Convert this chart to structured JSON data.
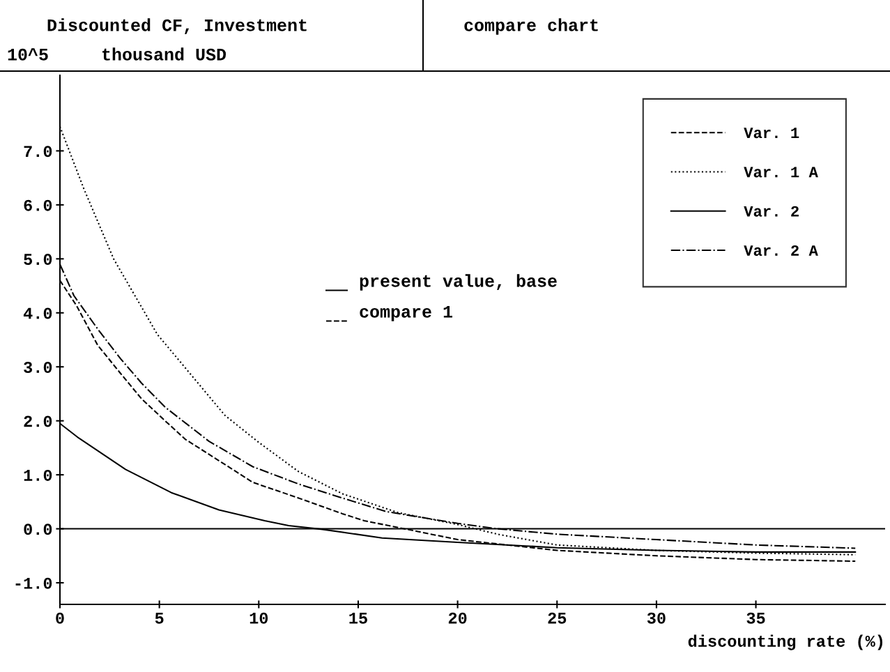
{
  "chart_data": {
    "type": "line",
    "title": "Discounted CF, Investment",
    "subtitle": "compare chart",
    "ylabel": "thousand USD",
    "xlabel": "discounting rate (%)",
    "annotations": [
      "10^5",
      "present value, base",
      "compare 1"
    ],
    "xlim": [
      0,
      41.5
    ],
    "ylim": [
      -1.4,
      8.4
    ],
    "xticks": [
      0,
      5,
      10,
      15,
      20,
      25,
      30,
      35
    ],
    "yticks": [
      {
        "value": -1,
        "label": "-1.0"
      },
      {
        "value": 0,
        "label": "0.0"
      },
      {
        "value": 1,
        "label": "1.0"
      },
      {
        "value": 2,
        "label": "2.0"
      },
      {
        "value": 3,
        "label": "3.0"
      },
      {
        "value": 4,
        "label": "4.0"
      },
      {
        "value": 5,
        "label": "5.0"
      },
      {
        "value": 6,
        "label": "6.0"
      },
      {
        "value": 7,
        "label": "7.0"
      }
    ],
    "ref_lines": [
      {
        "axis": "y",
        "value": 0,
        "label": null,
        "color": "#000000",
        "line_style": "solid"
      }
    ],
    "grid": false,
    "legend": "top right",
    "marker": "none",
    "series": [
      {
        "name": "Var. 1",
        "color": "#000000",
        "line_style": "dashed",
        "x": [
          0,
          0.84,
          1.9,
          3.0,
          4.1,
          5.2,
          6.3,
          8.6,
          9.7,
          12,
          14.2,
          15.3,
          18,
          20,
          25,
          30,
          35,
          40
        ],
        "values": [
          4.6,
          4.13,
          3.4,
          2.9,
          2.41,
          2.03,
          1.66,
          1.12,
          0.86,
          0.57,
          0.28,
          0.15,
          -0.05,
          -0.2,
          -0.4,
          -0.5,
          -0.57,
          -0.6
        ]
      },
      {
        "name": "Var. 1 A",
        "color": "#000000",
        "line_style": "dotted",
        "x": [
          0,
          1.2,
          2.7,
          4.9,
          8.3,
          10,
          12,
          14.2,
          17,
          20,
          22,
          25,
          30,
          35,
          40
        ],
        "values": [
          7.45,
          6.3,
          5.0,
          3.6,
          2.1,
          1.6,
          1.06,
          0.65,
          0.3,
          0.08,
          -0.1,
          -0.3,
          -0.4,
          -0.45,
          -0.48
        ]
      },
      {
        "name": "Var. 2",
        "color": "#000000",
        "line_style": "solid",
        "x": [
          0,
          0.95,
          3.3,
          5.6,
          8.0,
          10.3,
          11.5,
          13.2,
          16.2,
          20,
          25,
          30,
          35,
          40
        ],
        "values": [
          1.95,
          1.68,
          1.1,
          0.67,
          0.35,
          0.15,
          0.06,
          -0.01,
          -0.17,
          -0.25,
          -0.35,
          -0.4,
          -0.43,
          -0.43
        ]
      },
      {
        "name": "Var. 2 A",
        "color": "#000000",
        "line_style": "dashdot",
        "x": [
          0,
          0.7,
          1.9,
          3.05,
          4.1,
          5.3,
          7.5,
          9.7,
          12,
          14.2,
          16.4,
          20,
          22,
          25,
          30,
          35,
          40
        ],
        "values": [
          4.9,
          4.32,
          3.7,
          3.15,
          2.7,
          2.25,
          1.62,
          1.15,
          0.83,
          0.57,
          0.32,
          0.1,
          0,
          -0.1,
          -0.2,
          -0.3,
          -0.36
        ]
      }
    ]
  }
}
